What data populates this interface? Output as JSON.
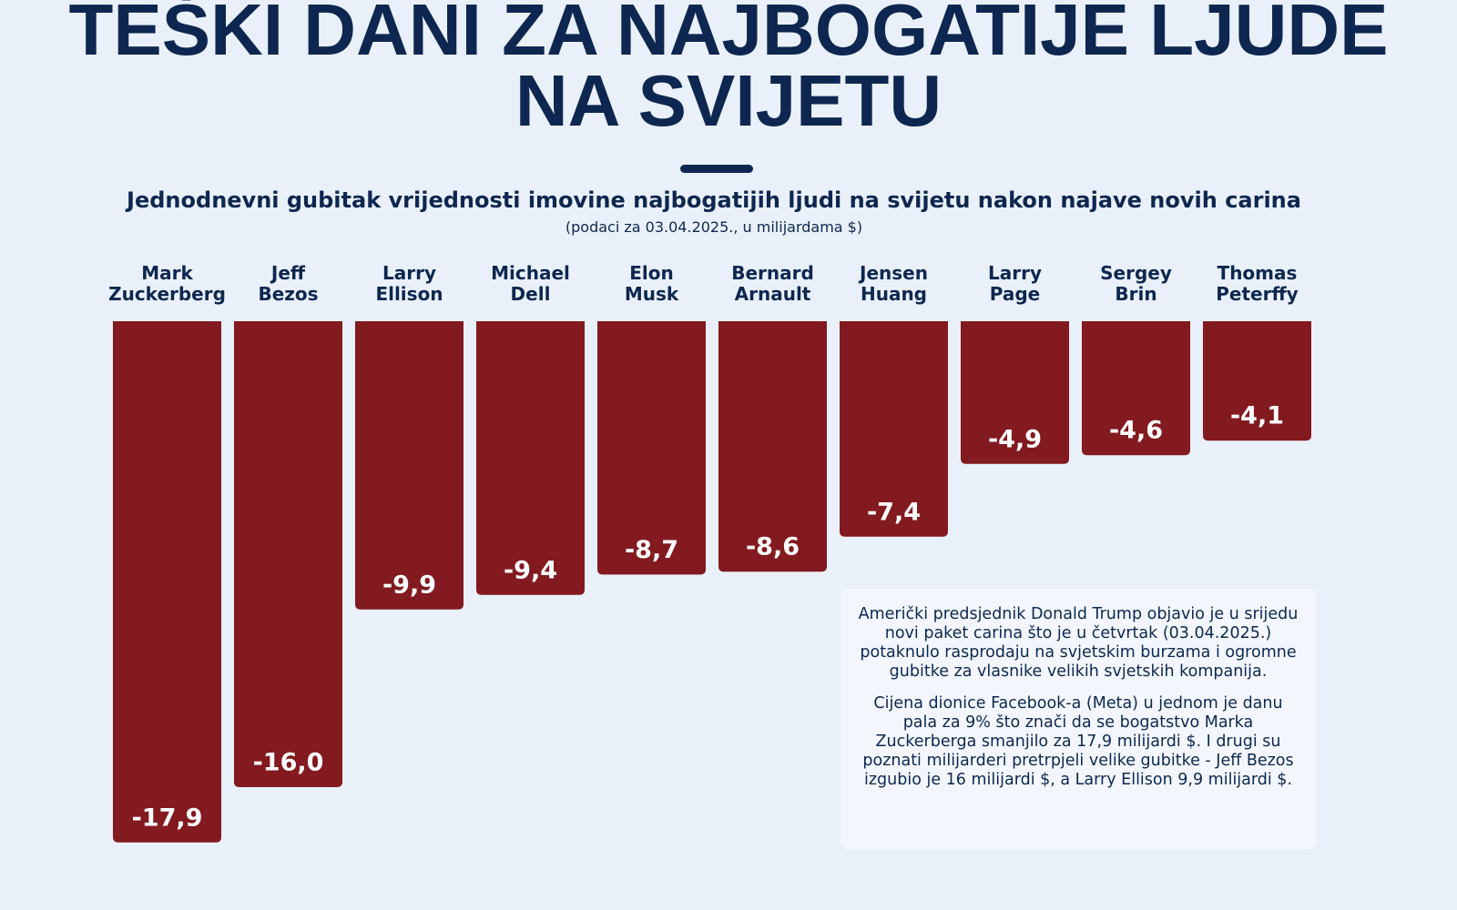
{
  "chart_data": {
    "type": "bar",
    "title": "TEŠKI DANI ZA NAJBOGATIJE LJUDE NA SVIJETU",
    "subtitle": "Jednodnevni gubitak vrijednosti imovine najbogatijih ljudi na svijetu nakon najave novih carina",
    "note": "(podaci za 03.04.2025., u milijardama $)",
    "categories": [
      "Mark Zuckerberg",
      "Jeff Bezos",
      "Larry Ellison",
      "Michael Dell",
      "Elon Musk",
      "Bernard Arnault",
      "Jensen Huang",
      "Larry Page",
      "Sergey Brin",
      "Thomas Peterffy"
    ],
    "values": [
      -17.9,
      -16.0,
      -9.9,
      -9.4,
      -8.7,
      -8.6,
      -7.4,
      -4.9,
      -4.6,
      -4.1
    ],
    "value_labels": [
      "-17,9",
      "-16,0",
      "-9,9",
      "-9,4",
      "-8,7",
      "-8,6",
      "-7,4",
      "-4,9",
      "-4,6",
      "-4,1"
    ],
    "color": "#821a1f",
    "annotation": [
      "Američki predsjednik Donald Trump objavio je u srijedu novi paket carina što je u četvrtak (03.04.2025.) potaknulo rasprodaju na svjetskim burzama i ogromne gubitke za vlasnike velikih svjetskih kompanija.",
      "Cijena dionice Facebook-a (Meta) u jednom je danu pala za 9% što znači da se bogatstvo Marka Zuckerberga smanjilo za 17,9 milijardi $. I drugi su poznati milijarderi pretrpjeli velike gubitke - Jeff Bezos izgubio je 16 milijardi $, a Larry Ellison 9,9 milijardi $."
    ]
  }
}
